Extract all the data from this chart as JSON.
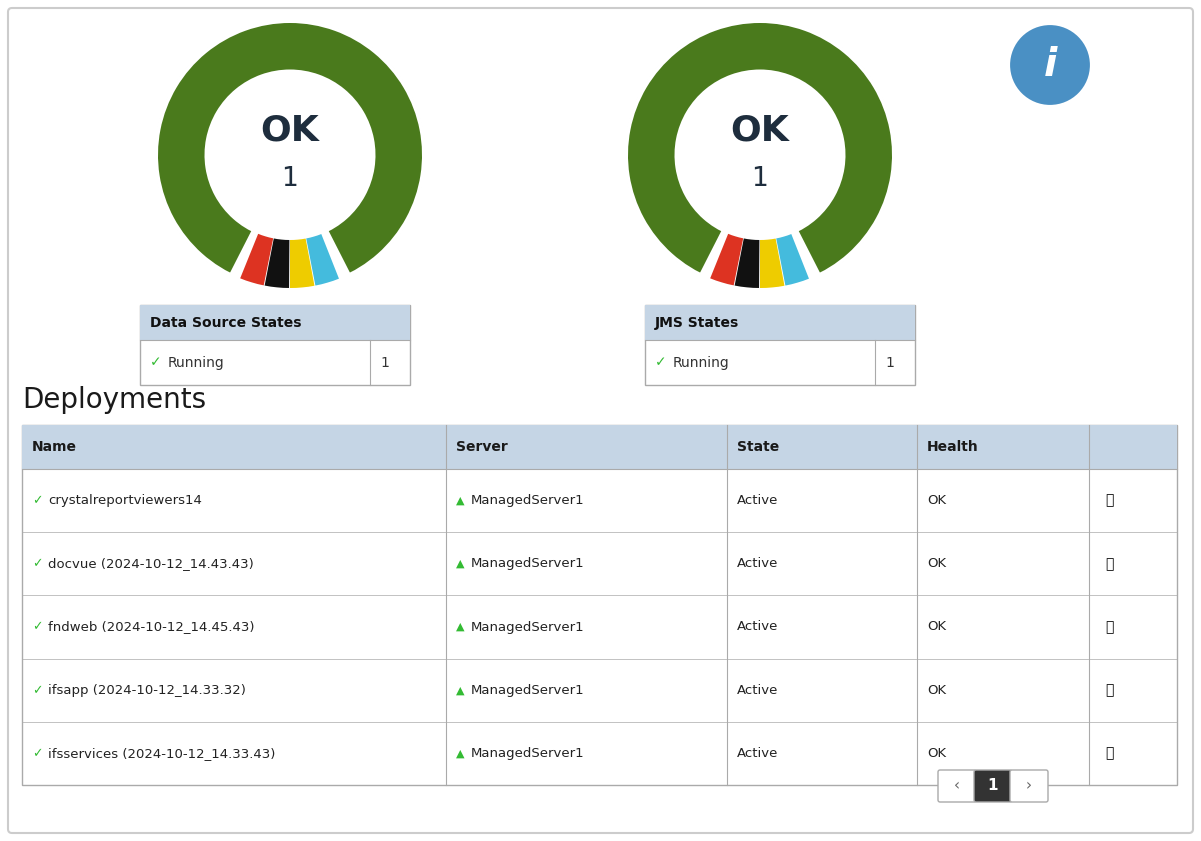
{
  "bg_color": "#ffffff",
  "border_color": "#cccccc",
  "gauge_green": "#4a7a1c",
  "gap_colors": [
    "#dd3322",
    "#111111",
    "#eecc00",
    "#44bbdd"
  ],
  "gauge1": {
    "label": "OK",
    "value": "1"
  },
  "gauge2": {
    "label": "OK",
    "value": "1"
  },
  "table1_title": "Data Source States",
  "table2_title": "JMS States",
  "table_header_color": "#c5d5e5",
  "table_border_color": "#aaaaaa",
  "running_value": "1",
  "deployments_title": "Deployments",
  "dep_header_color": "#c5d5e5",
  "dep_col_starts": [
    0.0,
    0.367,
    0.61,
    0.775,
    0.924
  ],
  "dep_col_labels": [
    "Name",
    "Server",
    "State",
    "Health",
    ""
  ],
  "deployments": [
    {
      "name": "crystalreportviewers14",
      "server": "ManagedServer1",
      "state": "Active",
      "health": "OK"
    },
    {
      "name": "docvue (2024-10-12_14.43.43)",
      "server": "ManagedServer1",
      "state": "Active",
      "health": "OK"
    },
    {
      "name": "fndweb (2024-10-12_14.45.43)",
      "server": "ManagedServer1",
      "state": "Active",
      "health": "OK"
    },
    {
      "name": "ifsapp (2024-10-12_14.33.32)",
      "server": "ManagedServer1",
      "state": "Active",
      "health": "OK"
    },
    {
      "name": "ifsservices (2024-10-12_14.33.43)",
      "server": "ManagedServer1",
      "state": "Active",
      "health": "OK"
    }
  ],
  "info_icon_color": "#4a90c4",
  "text_dark": "#1e2d3d",
  "check_color": "#33bb33",
  "arrow_color": "#33bb33",
  "bell_color": "#444444"
}
